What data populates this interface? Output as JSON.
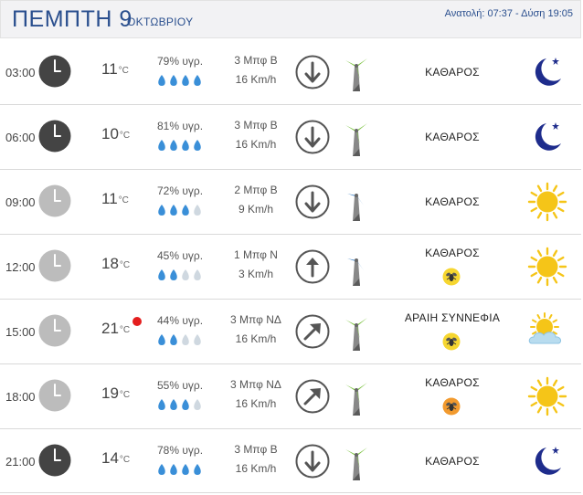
{
  "header": {
    "day": "ΠΕΜΠΤΗ 9",
    "month": "ΟΚΤΩΒΡΙΟΥ",
    "sun_times": "Ανατολή: 07:37  - Δύση 19:05"
  },
  "colors": {
    "title": "#2a4f8e",
    "drop_full": "#3a8fd8",
    "drop_empty": "#cfd8e0",
    "alert_dot": "#e41e1e"
  },
  "rows": [
    {
      "time": "03:00",
      "clock": "dark-clock-icon",
      "temp": "11",
      "unit": "°C",
      "humidity": "79% υγρ.",
      "drops_filled": 4,
      "wind_bf": "3 Μπφ Β",
      "wind_kmh": "16 Km/h",
      "arrow": "arrow-down-icon",
      "turbine": "green",
      "condition": "ΚΑΘΑΡΟΣ",
      "bee": null,
      "weather_icon": "moon-icon"
    },
    {
      "time": "06:00",
      "clock": "dark-clock-icon",
      "temp": "10",
      "unit": "°C",
      "humidity": "81% υγρ.",
      "drops_filled": 4,
      "wind_bf": "3 Μπφ Β",
      "wind_kmh": "16 Km/h",
      "arrow": "arrow-down-icon",
      "turbine": "green",
      "condition": "ΚΑΘΑΡΟΣ",
      "bee": null,
      "weather_icon": "moon-icon"
    },
    {
      "time": "09:00",
      "clock": "light-clock-icon",
      "temp": "11",
      "unit": "°C",
      "humidity": "72% υγρ.",
      "drops_filled": 3,
      "wind_bf": "2 Μπφ Β",
      "wind_kmh": "9 Km/h",
      "arrow": "arrow-down-icon",
      "turbine": "blue",
      "condition": "ΚΑΘΑΡΟΣ",
      "bee": null,
      "weather_icon": "sun-icon"
    },
    {
      "time": "12:00",
      "clock": "light-clock-icon",
      "temp": "18",
      "unit": "°C",
      "humidity": "45% υγρ.",
      "drops_filled": 2,
      "wind_bf": "1 Μπφ Ν",
      "wind_kmh": "3 Km/h",
      "arrow": "arrow-up-icon",
      "turbine": "blue",
      "condition": "ΚΑΘΑΡΟΣ",
      "bee": "yellow",
      "weather_icon": "sun-icon"
    },
    {
      "time": "15:00",
      "clock": "light-clock-icon",
      "temp": "21",
      "unit": "°C",
      "hot": true,
      "humidity": "44% υγρ.",
      "drops_filled": 2,
      "wind_bf": "3 Μπφ ΝΔ",
      "wind_kmh": "16 Km/h",
      "arrow": "arrow-up-right-icon",
      "turbine": "green",
      "condition": "ΑΡΑΙΗ ΣΥΝΝΕΦΙΑ",
      "bee": "yellow",
      "weather_icon": "sun-cloud-icon"
    },
    {
      "time": "18:00",
      "clock": "light-clock-icon",
      "temp": "19",
      "unit": "°C",
      "humidity": "55% υγρ.",
      "drops_filled": 3,
      "wind_bf": "3 Μπφ ΝΔ",
      "wind_kmh": "16 Km/h",
      "arrow": "arrow-up-right-icon",
      "turbine": "green",
      "condition": "ΚΑΘΑΡΟΣ",
      "bee": "orange",
      "weather_icon": "sun-icon"
    },
    {
      "time": "21:00",
      "clock": "dark-clock-icon",
      "temp": "14",
      "unit": "°C",
      "humidity": "78% υγρ.",
      "drops_filled": 4,
      "wind_bf": "3 Μπφ Β",
      "wind_kmh": "16 Km/h",
      "arrow": "arrow-down-icon",
      "turbine": "green",
      "condition": "ΚΑΘΑΡΟΣ",
      "bee": null,
      "weather_icon": "moon-icon"
    }
  ]
}
